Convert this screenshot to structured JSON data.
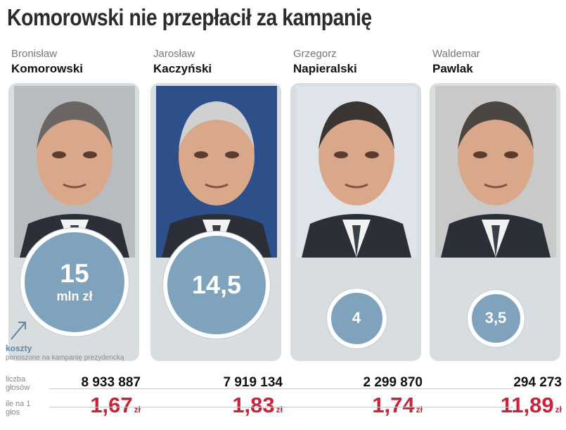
{
  "title": "Komorowski nie przepłacił za kampanię",
  "chart_data": {
    "type": "bubble",
    "title": "Komorowski nie przepłacił za kampanię",
    "legend": {
      "series_name": "koszty",
      "description": "ponoszone na kampanię prezydencką"
    },
    "unit": "mln zł",
    "row_labels": {
      "votes": "liczba głosów",
      "per_vote": "ile na 1 głos"
    },
    "per_vote_unit": "zł",
    "candidates": [
      {
        "first_name": "Bronisław",
        "last_name": "Komorowski",
        "cost_mln_pln": 15,
        "cost_label": "15",
        "show_unit": true,
        "votes": "8 933 887",
        "per_vote": "1,67",
        "per_vote_value": 1.67
      },
      {
        "first_name": "Jarosław",
        "last_name": "Kaczyński",
        "cost_mln_pln": 14.5,
        "cost_label": "14,5",
        "show_unit": false,
        "votes": "7 919 134",
        "per_vote": "1,83",
        "per_vote_value": 1.83
      },
      {
        "first_name": "Grzegorz",
        "last_name": "Napieralski",
        "cost_mln_pln": 4,
        "cost_label": "4",
        "show_unit": false,
        "votes": "2 299 870",
        "per_vote": "1,74",
        "per_vote_value": 1.74
      },
      {
        "first_name": "Waldemar",
        "last_name": "Pawlak",
        "cost_mln_pln": 3.5,
        "cost_label": "3,5",
        "show_unit": false,
        "votes": "294 273",
        "per_vote": "11,89",
        "per_vote_value": 11.89
      }
    ]
  },
  "colors": {
    "bubble": "#7fa3bd",
    "per_vote": "#c9233b",
    "suit_dark": "#2a2f38",
    "skin": "#d9a88b"
  }
}
